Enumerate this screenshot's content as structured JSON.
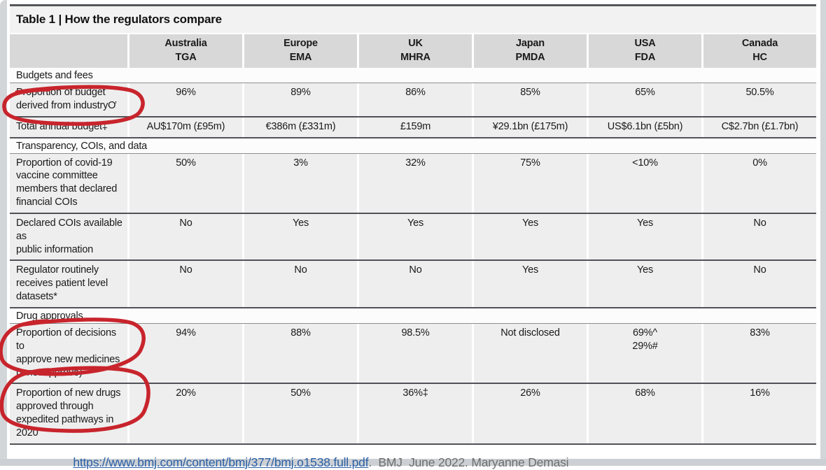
{
  "table": {
    "title": "Table 1 | How the regulators compare",
    "columns": [
      "Australia\nTGA",
      "Europe\nEMA",
      "UK\nMHRA",
      "Japan\nPMDA",
      "USA\nFDA",
      "Canada\nHC"
    ],
    "sections": [
      {
        "label": "Budgets and fees",
        "rows": [
          {
            "label": "Proportion of budget\nderived from industryƠ",
            "circled": true,
            "values": [
              "96%",
              "89%",
              "86%",
              "85%",
              "65%",
              "50.5%"
            ]
          },
          {
            "label": "Total annual budget‡",
            "circled": false,
            "values": [
              "AU$170m (£95m)",
              "€386m (£331m)",
              "£159m",
              "¥29.1bn (£175m)",
              "US$6.1bn (£5bn)",
              "C$2.7bn (£1.7bn)"
            ]
          }
        ]
      },
      {
        "label": "Transparency, COIs, and data",
        "rows": [
          {
            "label": "Proportion of covid-19\nvaccine committee\nmembers that declared\nfinancial COIs",
            "circled": false,
            "values": [
              "50%",
              "3%",
              "32%",
              "75%",
              "<10%",
              "0%"
            ]
          },
          {
            "label": "Declared COIs available as\n public information",
            "circled": false,
            "values": [
              "No",
              "Yes",
              "Yes",
              "Yes",
              "Yes",
              "No"
            ]
          },
          {
            "label": "Regulator routinely\nreceives patient level\ndatasets*",
            "circled": false,
            "values": [
              "No",
              "No",
              "No",
              "Yes",
              "Yes",
              "No"
            ]
          }
        ]
      },
      {
        "label": "Drug approvals",
        "rows": [
          {
            "label": "Proportion of decisions to\n approve new medicines\n(v not approve)",
            "circled": true,
            "values": [
              "94%",
              "88%",
              "98.5%",
              "Not disclosed",
              "69%^\n29%#",
              "83%"
            ]
          },
          {
            "label": "Proportion of new drugs\napproved through\nexpedited pathways in\n2020",
            "circled": true,
            "values": [
              "20%",
              "50%",
              "36%‡",
              "26%",
              "68%",
              "16%"
            ]
          }
        ]
      }
    ]
  },
  "footer": {
    "link": "https://www.bmj.com/content/bmj/377/bmj.o1538.full.pdf",
    "suffix": ".  BMJ  June 2022. Maryanne Demasi"
  },
  "colors": {
    "annotation_red": "#c8242c",
    "link_blue": "#2a5fa5",
    "header_gray": "#d8d8d8",
    "row_gray": "#eeeeee"
  }
}
